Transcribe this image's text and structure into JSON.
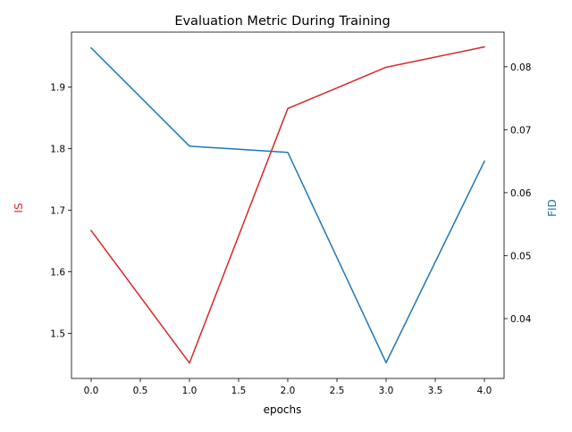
{
  "chart_data": {
    "type": "line",
    "title": "Evaluation Metric During Training",
    "xlabel": "epochs",
    "x": [
      0,
      1,
      2,
      3,
      4
    ],
    "xlim": [
      -0.2,
      4.2
    ],
    "xticks": [
      0.0,
      0.5,
      1.0,
      1.5,
      2.0,
      2.5,
      3.0,
      3.5,
      4.0
    ],
    "xtick_labels": [
      "0.0",
      "0.5",
      "1.0",
      "1.5",
      "2.0",
      "2.5",
      "3.0",
      "3.5",
      "4.0"
    ],
    "left_axis": {
      "label": "IS",
      "color": "#d62728",
      "ylim": [
        1.427,
        1.989
      ],
      "ticks": [
        1.5,
        1.6,
        1.7,
        1.8,
        1.9
      ],
      "tick_labels": [
        "1.5",
        "1.6",
        "1.7",
        "1.8",
        "1.9"
      ]
    },
    "right_axis": {
      "label": "FID",
      "color": "#1f77b4",
      "ylim": [
        0.0305,
        0.0855
      ],
      "ticks": [
        0.04,
        0.05,
        0.06,
        0.07,
        0.08
      ],
      "tick_labels": [
        "0.04",
        "0.05",
        "0.06",
        "0.07",
        "0.08"
      ]
    },
    "series": [
      {
        "axis": "left",
        "color": "#d62728",
        "values": [
          1.667,
          1.452,
          1.865,
          1.932,
          1.965
        ]
      },
      {
        "axis": "right",
        "color": "#1f77b4",
        "values": [
          0.083,
          0.0674,
          0.0664,
          0.033,
          0.065
        ]
      }
    ],
    "grid": false,
    "legend": false
  }
}
